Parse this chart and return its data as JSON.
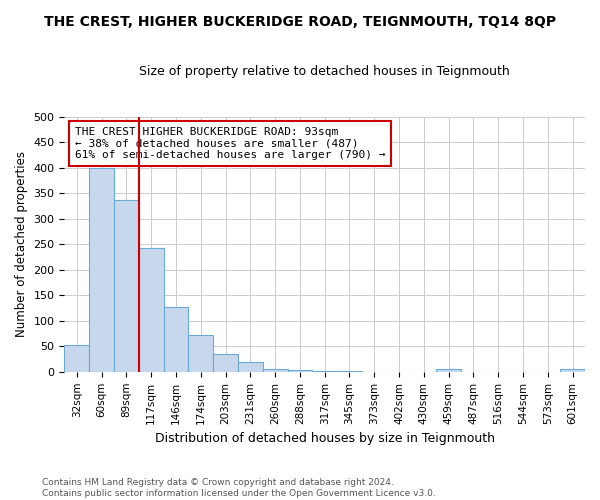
{
  "title": "THE CREST, HIGHER BUCKERIDGE ROAD, TEIGNMOUTH, TQ14 8QP",
  "subtitle": "Size of property relative to detached houses in Teignmouth",
  "xlabel": "Distribution of detached houses by size in Teignmouth",
  "ylabel": "Number of detached properties",
  "footer1": "Contains HM Land Registry data © Crown copyright and database right 2024.",
  "footer2": "Contains public sector information licensed under the Open Government Licence v3.0.",
  "categories": [
    "32sqm",
    "60sqm",
    "89sqm",
    "117sqm",
    "146sqm",
    "174sqm",
    "203sqm",
    "231sqm",
    "260sqm",
    "288sqm",
    "317sqm",
    "345sqm",
    "373sqm",
    "402sqm",
    "430sqm",
    "459sqm",
    "487sqm",
    "516sqm",
    "544sqm",
    "573sqm",
    "601sqm"
  ],
  "values": [
    53,
    400,
    337,
    243,
    128,
    72,
    35,
    20,
    5,
    3,
    1,
    2,
    0,
    0,
    0,
    5,
    0,
    0,
    0,
    0,
    5
  ],
  "bar_color": "#c8d8ec",
  "bar_edge_color": "#6aaad4",
  "highlight_bar_index": 2,
  "highlight_line_color": "#cc0000",
  "annotation_text": "THE CREST HIGHER BUCKERIDGE ROAD: 93sqm\n← 38% of detached houses are smaller (487)\n61% of semi-detached houses are larger (790) →",
  "annotation_box_edge_color": "#cc0000",
  "ylim": [
    0,
    500
  ],
  "yticks": [
    0,
    50,
    100,
    150,
    200,
    250,
    300,
    350,
    400,
    450,
    500
  ],
  "background_color": "#ffffff",
  "grid_color": "#cccccc"
}
